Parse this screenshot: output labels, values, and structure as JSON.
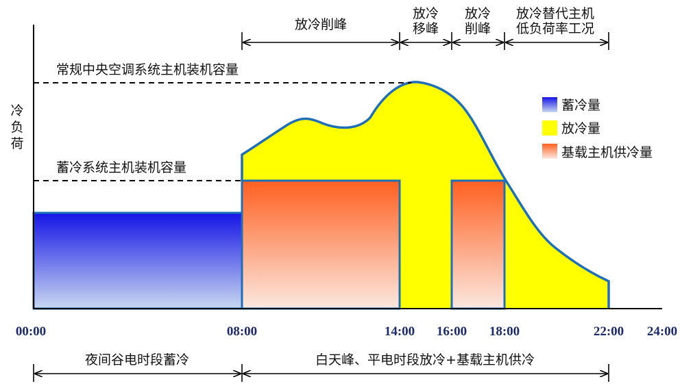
{
  "y_axis_label": "冷负荷",
  "x_ticks": [
    "00:00",
    "08:00",
    "14:00",
    "16:00",
    "18:00",
    "22:00",
    "24:00"
  ],
  "capacity_lines": {
    "conventional": "常规中央空调系统主机装机容量",
    "storage": "蓄冷系统主机装机容量"
  },
  "top_spans": [
    {
      "lines": [
        "放冷削峰"
      ]
    },
    {
      "lines": [
        "放冷",
        "移峰"
      ]
    },
    {
      "lines": [
        "放冷",
        "削峰"
      ]
    },
    {
      "lines": [
        "放冷替代主机",
        "低负荷率工况"
      ]
    }
  ],
  "bottom_spans": [
    {
      "label": "夜间谷电时段蓄冷"
    },
    {
      "label": "白天峰、平电时段放冷+基载主机供冷"
    }
  ],
  "legend": [
    {
      "label": "蓄冷量",
      "color": "#2a2ae8"
    },
    {
      "label": "放冷量",
      "color": "#ffff00"
    },
    {
      "label": "基载主机供冷量",
      "color": "#ff6a30"
    }
  ],
  "colors": {
    "outline": "#1e6fb8",
    "axis": "#000000",
    "storage_top": "#1414e6",
    "storage_bottom": "#c8d8f0",
    "release": "#ffff00",
    "base_top": "#ff6020",
    "base_bottom": "#fbe8e0"
  }
}
